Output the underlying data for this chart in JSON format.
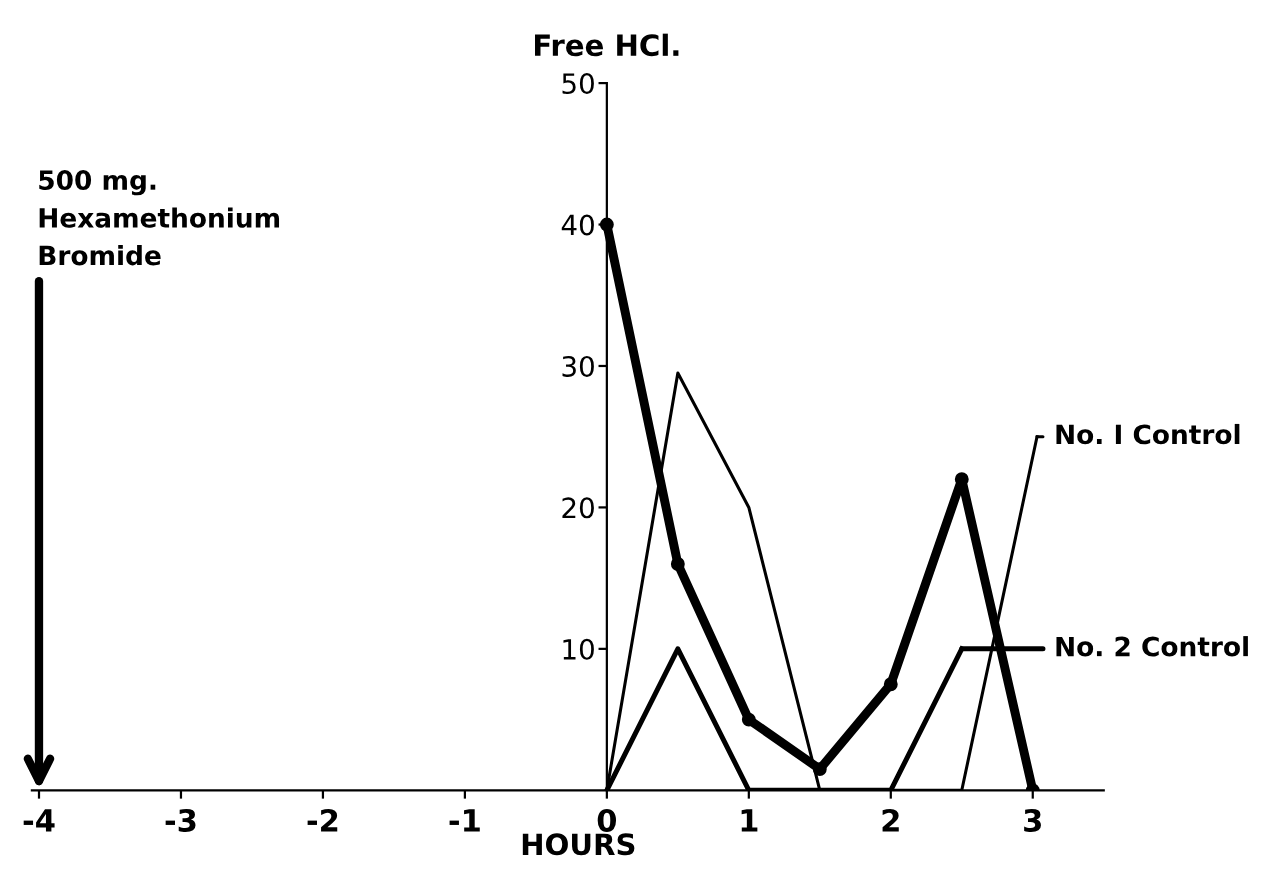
{
  "chart_data": {
    "type": "line",
    "ylabel": "Free HCl.",
    "xlabel": "HOURS",
    "xlim": [
      -4.05,
      3.5
    ],
    "xticks": [
      -4,
      -3,
      -2,
      -1,
      0,
      1,
      2,
      3
    ],
    "ylim": [
      0,
      50
    ],
    "yticks": [
      10,
      20,
      30,
      40,
      50
    ],
    "grid": false,
    "legend": "right",
    "series": [
      {
        "x": [
          0,
          0.5,
          1,
          1.5,
          2,
          2.5,
          3
        ],
        "values": [
          40,
          16,
          5,
          1.5,
          7.5,
          22,
          0
        ],
        "color": "#000000",
        "marker": "circle"
      },
      {
        "name": "No. I Control",
        "x": [
          0,
          0.5,
          1,
          1.5,
          2,
          2.5,
          3.03
        ],
        "values": [
          0,
          29.5,
          20,
          0,
          0,
          0,
          25
        ],
        "color": "#000000"
      },
      {
        "name": "No. 2 Control",
        "x": [
          0,
          0.5,
          1,
          1.5,
          2,
          2.5
        ],
        "values": [
          0,
          10,
          0,
          0,
          0,
          10
        ],
        "color": "#000000"
      }
    ],
    "annotations": [
      "500 mg.\nHexamethonium\nBromide"
    ]
  }
}
